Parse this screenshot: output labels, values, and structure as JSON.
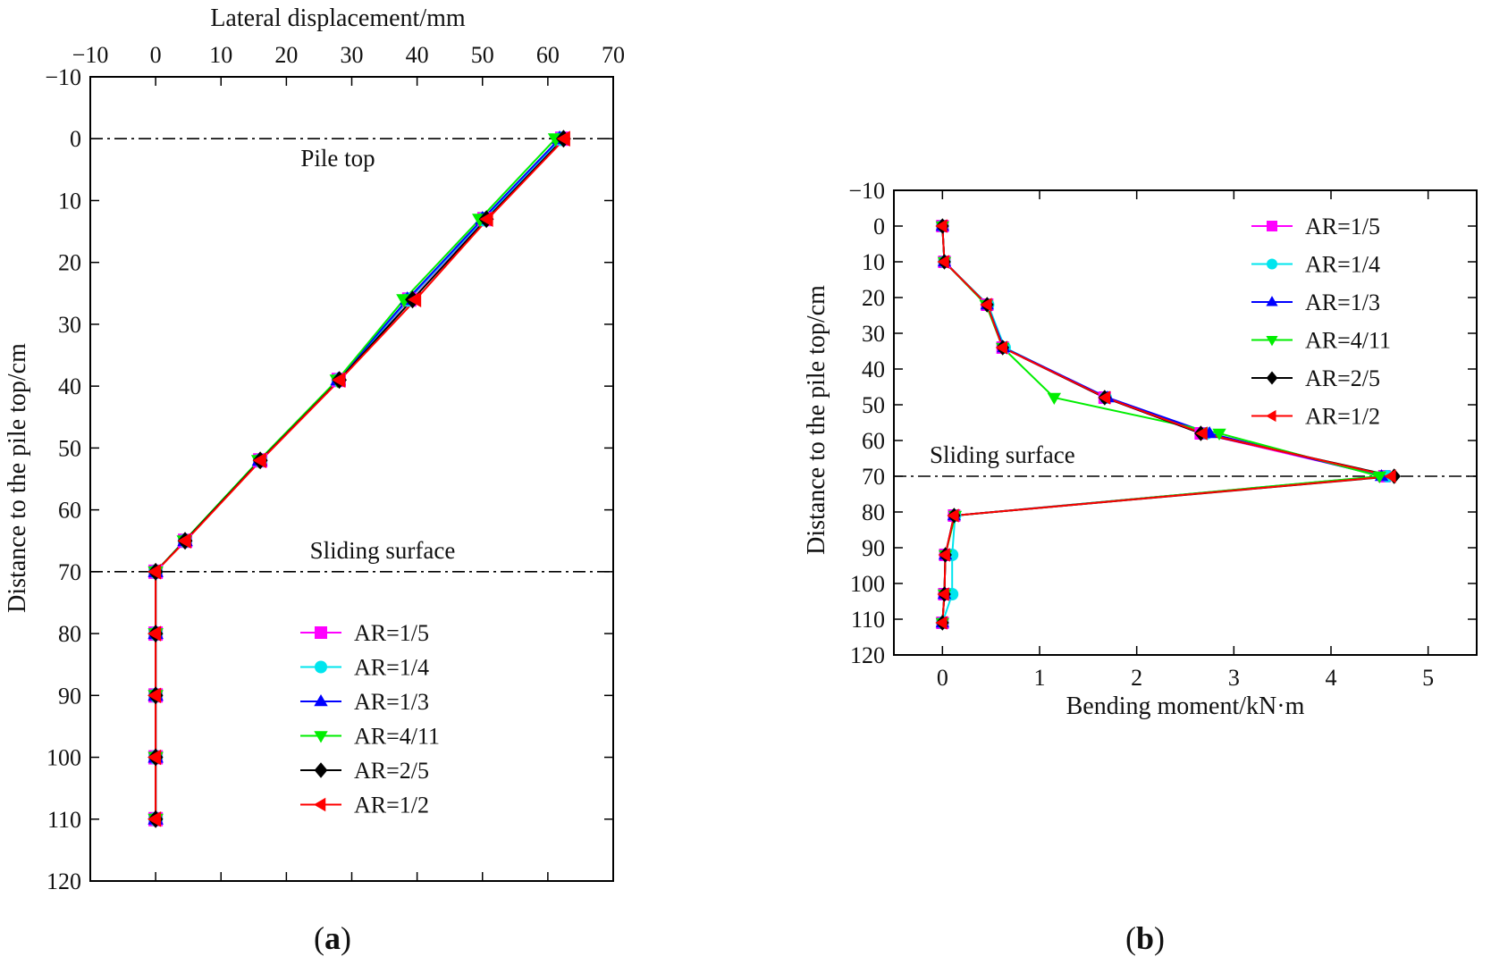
{
  "figure": {
    "panels": [
      {
        "label_open": "(",
        "label_letter": "a",
        "label_close": ")"
      },
      {
        "label_open": "(",
        "label_letter": "b",
        "label_close": ")"
      }
    ]
  },
  "series_colors": {
    "AR=1/5": "#ff00ff",
    "AR=1/4": "#00e5ee",
    "AR=1/3": "#0000ff",
    "AR=4/11": "#00ee00",
    "AR=2/5": "#000000",
    "AR=1/2": "#ff0000"
  },
  "series_markers": {
    "AR=1/5": "square",
    "AR=1/4": "circle",
    "AR=1/3": "triangle-up",
    "AR=4/11": "triangle-down",
    "AR=2/5": "diamond",
    "AR=1/2": "triangle-left"
  },
  "chart_data": [
    {
      "id": "a",
      "type": "line",
      "title": "",
      "xlabel": "Lateral displacement/mm",
      "ylabel": "Distance to the pile top/cm",
      "x_axis_position": "top",
      "y_inverted": true,
      "xlim": [
        -10,
        70
      ],
      "ylim": [
        -10,
        120
      ],
      "xticks": [
        -10,
        0,
        10,
        20,
        30,
        40,
        50,
        60,
        70
      ],
      "yticks": [
        -10,
        0,
        10,
        20,
        30,
        40,
        50,
        60,
        70,
        80,
        90,
        100,
        110,
        120
      ],
      "xtick_labels": [
        "−10",
        "0",
        "10",
        "20",
        "30",
        "40",
        "50",
        "60",
        "70"
      ],
      "ytick_labels": [
        "−10",
        "0",
        "10",
        "20",
        "30",
        "40",
        "50",
        "60",
        "70",
        "80",
        "90",
        "100",
        "110",
        "120"
      ],
      "grid": false,
      "legend_position": "lower-center",
      "reference_lines": [
        {
          "y": 0,
          "label": "Pile top"
        },
        {
          "y": 70,
          "label": "Sliding surface"
        }
      ],
      "depth": [
        0,
        13,
        26,
        39,
        52,
        65,
        70,
        80,
        90,
        100,
        110
      ],
      "series": [
        {
          "name": "AR=1/5",
          "values": [
            62.2,
            50.3,
            38.8,
            28.0,
            16.0,
            4.5,
            0,
            0,
            0,
            0,
            0
          ]
        },
        {
          "name": "AR=1/4",
          "values": [
            62.0,
            50.2,
            38.7,
            28.0,
            16.0,
            4.5,
            0,
            0,
            0,
            0,
            0
          ]
        },
        {
          "name": "AR=1/3",
          "values": [
            61.8,
            50.0,
            38.5,
            27.9,
            15.9,
            4.5,
            0,
            0,
            0,
            0,
            0
          ]
        },
        {
          "name": "AR=4/11",
          "values": [
            61.2,
            49.6,
            38.0,
            27.8,
            15.8,
            4.4,
            0,
            0,
            0,
            0,
            0
          ]
        },
        {
          "name": "AR=2/5",
          "values": [
            62.4,
            50.6,
            39.3,
            28.1,
            16.0,
            4.5,
            0,
            0,
            0,
            0,
            0
          ]
        },
        {
          "name": "AR=1/2",
          "values": [
            62.6,
            50.8,
            39.8,
            28.2,
            16.1,
            4.6,
            0,
            0,
            0,
            0,
            0
          ]
        }
      ]
    },
    {
      "id": "b",
      "type": "line",
      "title": "",
      "xlabel": "Bending moment/kN·m",
      "ylabel": "Distance to the pile top/cm",
      "x_axis_position": "bottom",
      "y_inverted": true,
      "xlim": [
        -0.5,
        5.5
      ],
      "ylim": [
        -10,
        120
      ],
      "xticks": [
        0,
        1,
        2,
        3,
        4,
        5
      ],
      "yticks": [
        -10,
        0,
        10,
        20,
        30,
        40,
        50,
        60,
        70,
        80,
        90,
        100,
        110,
        120
      ],
      "xtick_labels": [
        "0",
        "1",
        "2",
        "3",
        "4",
        "5"
      ],
      "ytick_labels": [
        "−10",
        "0",
        "10",
        "20",
        "30",
        "40",
        "50",
        "60",
        "70",
        "80",
        "90",
        "100",
        "110",
        "120"
      ],
      "grid": false,
      "legend_position": "top-right",
      "reference_lines": [
        {
          "y": 70,
          "label": "Sliding surface"
        }
      ],
      "series": [
        {
          "name": "AR=1/5",
          "x": [
            0.0,
            0.02,
            0.46,
            0.62,
            1.67,
            2.66,
            4.55,
            0.12,
            0.03,
            0.02,
            0.0
          ],
          "y": [
            0,
            10,
            22,
            34,
            48,
            58,
            70,
            81,
            92,
            103,
            111
          ]
        },
        {
          "name": "AR=1/4",
          "x": [
            0.0,
            0.02,
            0.47,
            0.64,
            1.68,
            2.72,
            4.58,
            0.13,
            0.1,
            0.1,
            0.0
          ],
          "y": [
            0,
            10,
            22,
            34,
            48,
            58,
            70,
            81,
            92,
            103,
            111
          ]
        },
        {
          "name": "AR=1/3",
          "x": [
            0.0,
            0.02,
            0.46,
            0.63,
            1.7,
            2.75,
            4.52,
            0.12,
            0.03,
            0.02,
            0.0
          ],
          "y": [
            0,
            10,
            22,
            34,
            48,
            58,
            70,
            81,
            92,
            103,
            111
          ]
        },
        {
          "name": "AR=4/11",
          "x": [
            0.0,
            0.02,
            0.45,
            0.62,
            1.15,
            2.85,
            4.5,
            0.13,
            0.03,
            0.02,
            0.0
          ],
          "y": [
            0,
            10,
            22,
            34,
            48,
            58,
            70,
            81,
            92,
            103,
            111
          ]
        },
        {
          "name": "AR=2/5",
          "x": [
            0.0,
            0.02,
            0.46,
            0.62,
            1.67,
            2.66,
            4.65,
            0.12,
            0.03,
            0.02,
            0.0
          ],
          "y": [
            0,
            10,
            22,
            34,
            48,
            58,
            70,
            81,
            92,
            103,
            111
          ]
        },
        {
          "name": "AR=1/2",
          "x": [
            0.0,
            0.02,
            0.46,
            0.62,
            1.68,
            2.68,
            4.62,
            0.12,
            0.03,
            0.02,
            0.0
          ],
          "y": [
            0,
            10,
            22,
            34,
            48,
            58,
            70,
            81,
            92,
            103,
            111
          ]
        }
      ]
    }
  ]
}
